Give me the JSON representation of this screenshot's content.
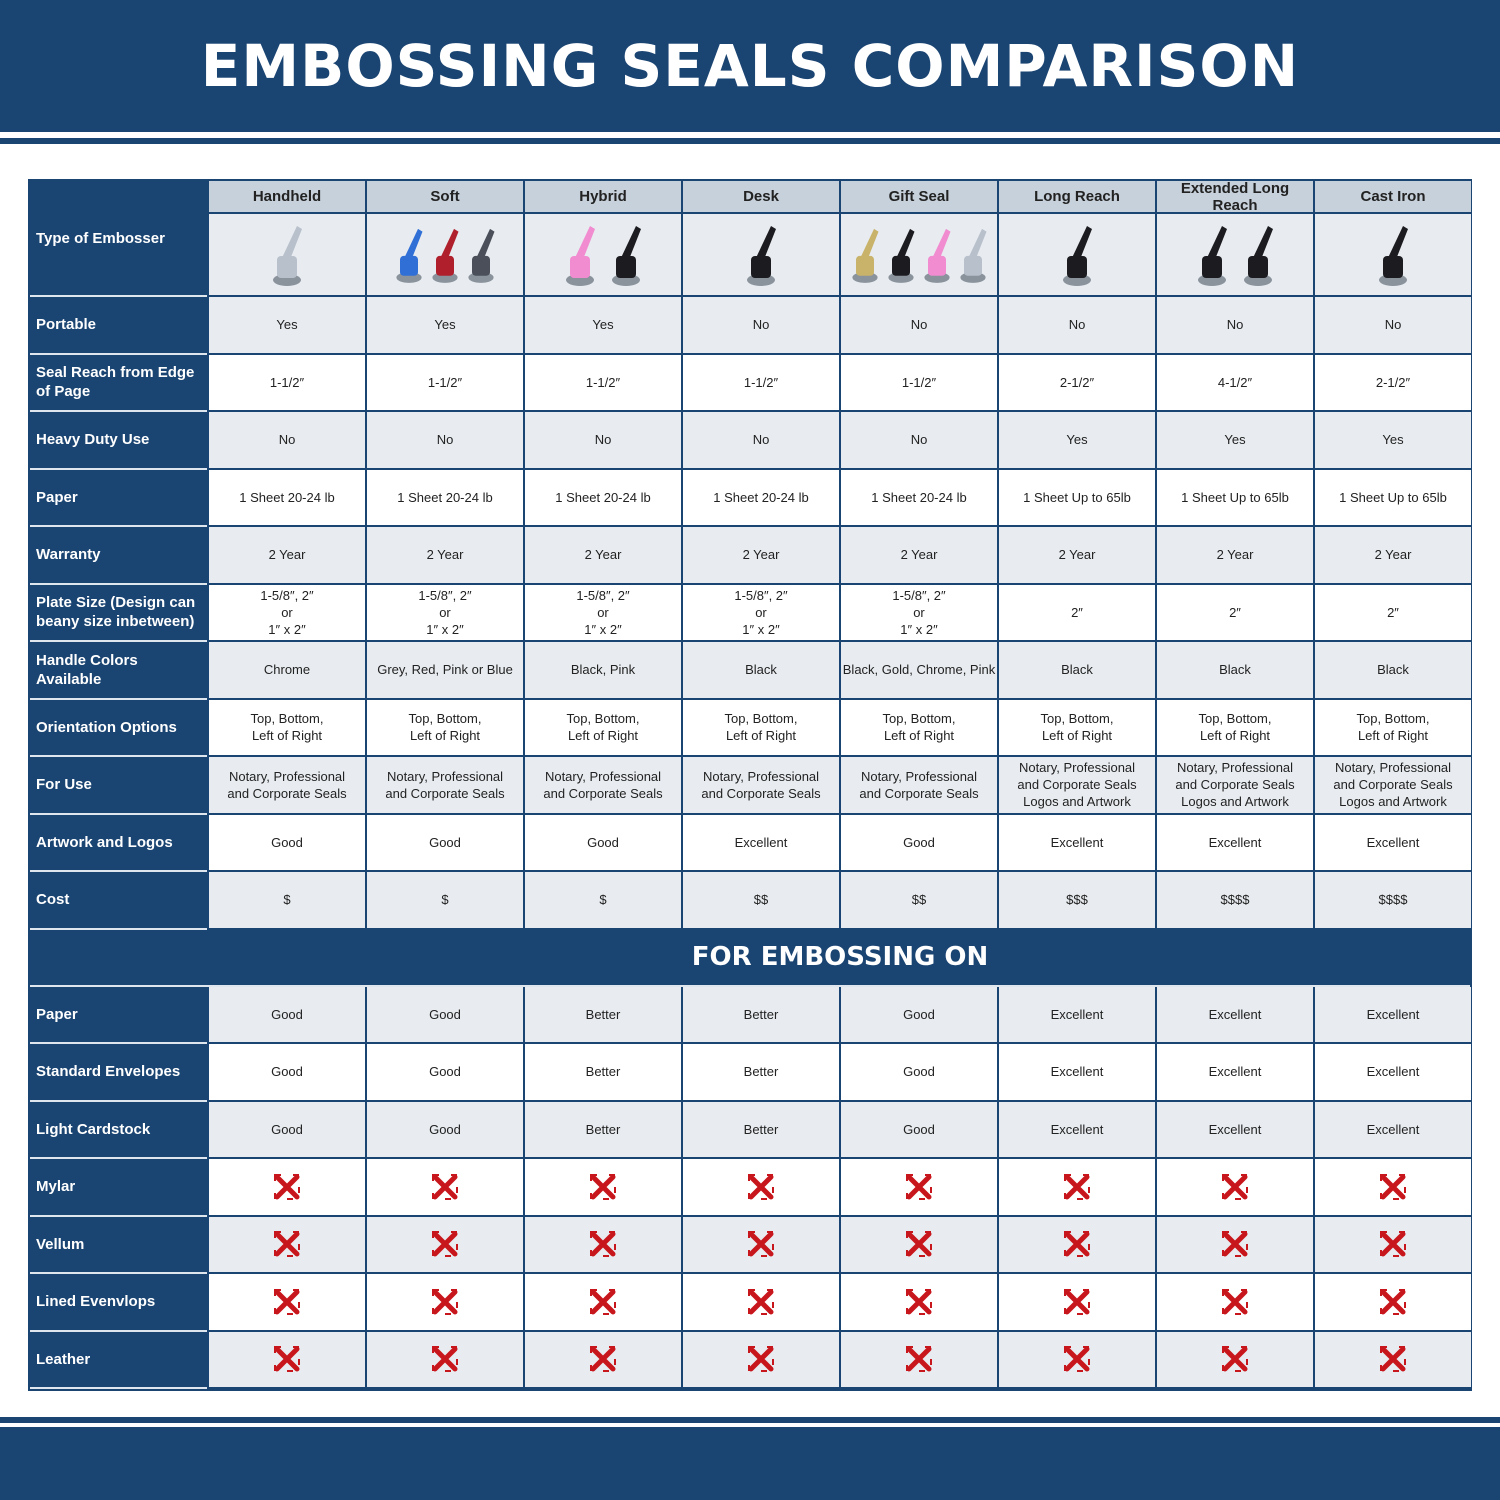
{
  "title": "EMBOSSING SEALS COMPARISON",
  "colors": {
    "navy": "#1a4472",
    "header_gray": "#c7d1db",
    "row_gray": "#e8ecf0",
    "x_red": "#c8161d"
  },
  "type_label": "Type of Embosser",
  "columns": [
    "Handheld",
    "Soft",
    "Hybrid",
    "Desk",
    "Gift Seal",
    "Long Reach",
    "Extended Long Reach",
    "Cast Iron"
  ],
  "column_images": [
    [
      "chrome"
    ],
    [
      "blue",
      "red",
      "gray"
    ],
    [
      "pink",
      "black"
    ],
    [
      "black"
    ],
    [
      "gold",
      "black",
      "pink",
      "chrome"
    ],
    [
      "black"
    ],
    [
      "black",
      "black"
    ],
    [
      "black"
    ]
  ],
  "rows": [
    {
      "label": "Portable",
      "values": [
        "Yes",
        "Yes",
        "Yes",
        "No",
        "No",
        "No",
        "No",
        "No"
      ]
    },
    {
      "label": "Seal Reach from Edge of Page",
      "values": [
        "1-1/2″",
        "1-1/2″",
        "1-1/2″",
        "1-1/2″",
        "1-1/2″",
        "2-1/2″",
        "4-1/2″",
        "2-1/2″"
      ]
    },
    {
      "label": "Heavy Duty Use",
      "values": [
        "No",
        "No",
        "No",
        "No",
        "No",
        "Yes",
        "Yes",
        "Yes"
      ]
    },
    {
      "label": "Paper",
      "values": [
        "1 Sheet 20-24 lb",
        "1 Sheet 20-24 lb",
        "1 Sheet 20-24 lb",
        "1 Sheet 20-24 lb",
        "1 Sheet 20-24 lb",
        "1 Sheet Up to 65lb",
        "1 Sheet Up to 65lb",
        "1 Sheet Up to 65lb"
      ]
    },
    {
      "label": "Warranty",
      "values": [
        "2 Year",
        "2 Year",
        "2 Year",
        "2 Year",
        "2 Year",
        "2 Year",
        "2 Year",
        "2 Year"
      ]
    },
    {
      "label": "Plate Size (Design can beany size inbetween)",
      "values": [
        "1-5/8″, 2″\nor\n1″ x 2″",
        "1-5/8″, 2″\nor\n1″ x 2″",
        "1-5/8″, 2″\nor\n1″ x 2″",
        "1-5/8″, 2″\nor\n1″ x 2″",
        "1-5/8″, 2″\nor\n1″ x 2″",
        "2″",
        "2″",
        "2″"
      ]
    },
    {
      "label": "Handle Colors Available",
      "values": [
        "Chrome",
        "Grey, Red, Pink or Blue",
        "Black, Pink",
        "Black",
        "Black, Gold, Chrome, Pink",
        "Black",
        "Black",
        "Black"
      ]
    },
    {
      "label": "Orientation Options",
      "values": [
        "Top, Bottom,\nLeft of Right",
        "Top, Bottom,\nLeft of Right",
        "Top, Bottom,\nLeft of Right",
        "Top, Bottom,\nLeft of Right",
        "Top, Bottom,\nLeft of Right",
        "Top, Bottom,\nLeft of Right",
        "Top, Bottom,\nLeft of Right",
        "Top, Bottom,\nLeft of Right"
      ]
    },
    {
      "label": "For Use",
      "values": [
        "Notary, Professional\nand Corporate Seals",
        "Notary, Professional\nand Corporate Seals",
        "Notary, Professional\nand Corporate Seals",
        "Notary, Professional\nand Corporate Seals",
        "Notary, Professional\nand Corporate Seals",
        "Notary, Professional\nand Corporate Seals\nLogos and Artwork",
        "Notary, Professional\nand Corporate Seals\nLogos and Artwork",
        "Notary, Professional\nand Corporate Seals\nLogos and Artwork"
      ]
    },
    {
      "label": "Artwork and Logos",
      "values": [
        "Good",
        "Good",
        "Good",
        "Excellent",
        "Good",
        "Excellent",
        "Excellent",
        "Excellent"
      ]
    },
    {
      "label": "Cost",
      "values": [
        "$",
        "$",
        "$",
        "$$",
        "$$",
        "$$$",
        "$$$$",
        "$$$$"
      ]
    }
  ],
  "section_title": "FOR EMBOSSING ON",
  "embossing_rows": [
    {
      "label": "Paper",
      "values": [
        "Good",
        "Good",
        "Better",
        "Better",
        "Good",
        "Excellent",
        "Excellent",
        "Excellent"
      ]
    },
    {
      "label": "Standard Envelopes",
      "values": [
        "Good",
        "Good",
        "Better",
        "Better",
        "Good",
        "Excellent",
        "Excellent",
        "Excellent"
      ]
    },
    {
      "label": "Light Cardstock",
      "values": [
        "Good",
        "Good",
        "Better",
        "Better",
        "Good",
        "Excellent",
        "Excellent",
        "Excellent"
      ]
    },
    {
      "label": "Mylar",
      "icon": "x-mark"
    },
    {
      "label": "Vellum",
      "icon": "x-mark"
    },
    {
      "label": "Lined Evenvlops",
      "icon": "x-mark"
    },
    {
      "label": "Leather",
      "icon": "x-mark"
    }
  ]
}
